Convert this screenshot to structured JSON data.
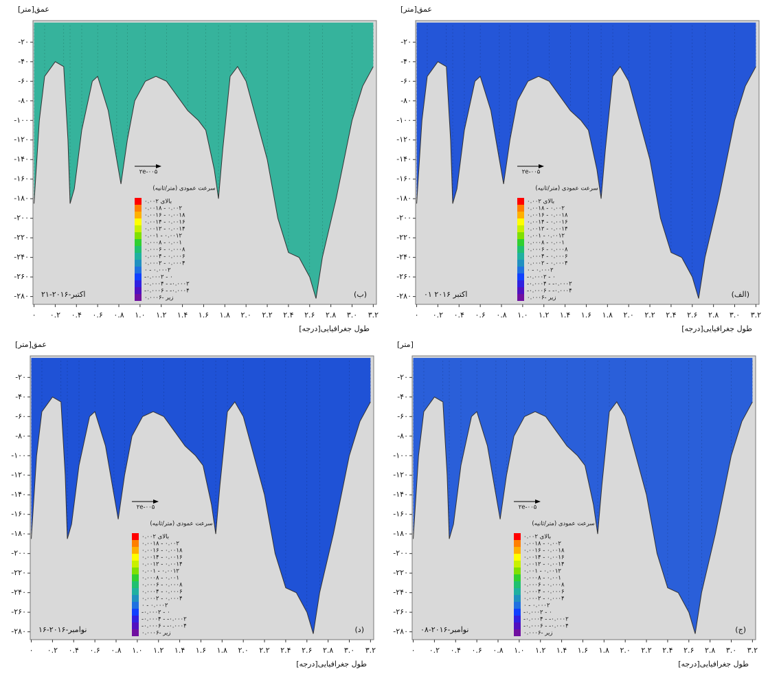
{
  "chart_data": [
    {
      "type": "contour",
      "label": "(ب)",
      "date": "۲۱-اکتبر-۲۰۱۶",
      "y_label": "عمق[متر]",
      "x_label": "طول جغرافیایی[درجه]",
      "color": "#36b39c",
      "vector_label": "۲e-۰۰۵",
      "x": [
        0,
        0.05,
        0.1,
        0.2,
        0.28,
        0.32,
        0.34,
        0.38,
        0.45,
        0.55,
        0.6,
        0.7,
        0.78,
        0.82,
        0.88,
        0.95,
        1.05,
        1.15,
        1.25,
        1.35,
        1.45,
        1.55,
        1.62,
        1.7,
        1.74,
        1.78,
        1.85,
        1.92,
        2.0,
        2.1,
        2.2,
        2.3,
        2.4,
        2.5,
        2.6,
        2.66,
        2.72,
        2.85,
        3.0,
        3.1,
        3.2
      ],
      "values": [
        -185,
        -100,
        -55,
        -40,
        -45,
        -120,
        -185,
        -170,
        -110,
        -60,
        -55,
        -90,
        -140,
        -165,
        -120,
        -80,
        -60,
        -55,
        -60,
        -75,
        -90,
        -100,
        -110,
        -150,
        -180,
        -130,
        -55,
        -45,
        -60,
        -100,
        -140,
        -200,
        -235,
        -240,
        -260,
        -282,
        -240,
        -180,
        -100,
        -65,
        -45
      ],
      "xlim": [
        -0.01,
        3.23
      ],
      "ylim": [
        -288,
        2
      ],
      "xticks": [
        {
          "value": 0,
          "label": "۰"
        },
        {
          "value": 0.2,
          "label": "۰.۲"
        },
        {
          "value": 0.4,
          "label": "۰.۴"
        },
        {
          "value": 0.6,
          "label": "۰.۶"
        },
        {
          "value": 0.8,
          "label": "۰.۸"
        },
        {
          "value": 1.0,
          "label": "۱.۰"
        },
        {
          "value": 1.2,
          "label": "۱.۲"
        },
        {
          "value": 1.4,
          "label": "۱.۴"
        },
        {
          "value": 1.6,
          "label": "۱.۶"
        },
        {
          "value": 1.8,
          "label": "۱.۸"
        },
        {
          "value": 2.0,
          "label": "۲.۰"
        },
        {
          "value": 2.2,
          "label": "۲.۲"
        },
        {
          "value": 2.4,
          "label": "۲.۴"
        },
        {
          "value": 2.6,
          "label": "۲.۶"
        },
        {
          "value": 2.8,
          "label": "۲.۸"
        },
        {
          "value": 3.0,
          "label": "۳.۰"
        },
        {
          "value": 3.2,
          "label": "۳.۲"
        }
      ],
      "yticks": [
        {
          "value": -20,
          "label": "-۲۰"
        },
        {
          "value": -40,
          "label": "-۴۰"
        },
        {
          "value": -60,
          "label": "-۶۰"
        },
        {
          "value": -80,
          "label": "-۸۰"
        },
        {
          "value": -100,
          "label": "-۱۰۰"
        },
        {
          "value": -120,
          "label": "-۱۲۰"
        },
        {
          "value": -140,
          "label": "-۱۴۰"
        },
        {
          "value": -160,
          "label": "-۱۶۰"
        },
        {
          "value": -180,
          "label": "-۱۸۰"
        },
        {
          "value": -200,
          "label": "-۲۰۰"
        },
        {
          "value": -220,
          "label": "-۲۲۰"
        },
        {
          "value": -240,
          "label": "-۲۴۰"
        },
        {
          "value": -260,
          "label": "-۲۶۰"
        },
        {
          "value": -280,
          "label": "-۲۸۰"
        }
      ],
      "legend": {
        "title": "سرعت عمودی (متر/ثانیه)",
        "colors": [
          "#ff0000",
          "#ff7f00",
          "#ffb000",
          "#ffff00",
          "#c8f000",
          "#80e000",
          "#30d030",
          "#20c070",
          "#20b0a0",
          "#2090c0",
          "#2070e0",
          "#1040ff",
          "#3020e0",
          "#5010c0",
          "#7010a0"
        ],
        "labels": [
          "بالای ۰.۰۰۲",
          "۰.۰۰۱۸ - ۰.۰۰۲",
          "۰.۰۰۱۶ - ۰.۰۰۱۸",
          "۰.۰۰۱۴ - ۰.۰۰۱۶",
          "۰.۰۰۱۲ - ۰.۰۰۱۴",
          "۰.۰۰۱ - ۰.۰۰۱۲",
          "۰.۰۰۰۸ - ۰.۰۰۱",
          "۰.۰۰۰۶ - ۰.۰۰۰۸",
          "۰.۰۰۰۴ - ۰.۰۰۰۶",
          "۰.۰۰۰۲ - ۰.۰۰۰۴",
          "۰ - ۰.۰۰۰۲",
          "-۰.۰۰۰۲ - ۰",
          "-۰.۰۰۰۴ - -۰.۰۰۰۲",
          "-۰.۰۰۰۶ - -۰.۰۰۰۴",
          "زیر -۰.۰۰۰۶"
        ]
      }
    },
    {
      "type": "contour",
      "label": "(الف)",
      "date": "۰۱ اکتبر ۲۰۱۶",
      "y_label": "عمق[متر]",
      "x_label": "طول جغرافیایی[درجه]",
      "color": "#2456d8",
      "vector_label": "۲e-۰۰۵",
      "x": [
        0,
        0.05,
        0.1,
        0.2,
        0.28,
        0.32,
        0.34,
        0.38,
        0.45,
        0.55,
        0.6,
        0.7,
        0.78,
        0.82,
        0.88,
        0.95,
        1.05,
        1.15,
        1.25,
        1.35,
        1.45,
        1.55,
        1.62,
        1.7,
        1.74,
        1.78,
        1.85,
        1.92,
        2.0,
        2.1,
        2.2,
        2.3,
        2.4,
        2.5,
        2.6,
        2.66,
        2.72,
        2.85,
        3.0,
        3.1,
        3.2
      ],
      "values": [
        -185,
        -100,
        -55,
        -40,
        -45,
        -120,
        -185,
        -170,
        -110,
        -60,
        -55,
        -90,
        -140,
        -165,
        -120,
        -80,
        -60,
        -55,
        -60,
        -75,
        -90,
        -100,
        -110,
        -150,
        -180,
        -130,
        -55,
        -45,
        -60,
        -100,
        -140,
        -200,
        -235,
        -240,
        -260,
        -282,
        -240,
        -180,
        -100,
        -65,
        -45
      ],
      "xlim": [
        -0.01,
        3.23
      ],
      "ylim": [
        -288,
        2
      ],
      "xticks": [
        {
          "value": 0,
          "label": "۰"
        },
        {
          "value": 0.2,
          "label": "۰.۲"
        },
        {
          "value": 0.4,
          "label": "۰.۴"
        },
        {
          "value": 0.6,
          "label": "۰.۶"
        },
        {
          "value": 0.8,
          "label": "۰.۸"
        },
        {
          "value": 1.0,
          "label": "۱.۰"
        },
        {
          "value": 1.2,
          "label": "۱.۲"
        },
        {
          "value": 1.4,
          "label": "۱.۴"
        },
        {
          "value": 1.6,
          "label": "۱.۶"
        },
        {
          "value": 1.8,
          "label": "۱.۸"
        },
        {
          "value": 2.0,
          "label": "۲.۰"
        },
        {
          "value": 2.2,
          "label": "۲.۲"
        },
        {
          "value": 2.4,
          "label": "۲.۴"
        },
        {
          "value": 2.6,
          "label": "۲.۶"
        },
        {
          "value": 2.8,
          "label": "۲.۸"
        },
        {
          "value": 3.0,
          "label": "۳.۰"
        },
        {
          "value": 3.2,
          "label": "۳.۲"
        }
      ],
      "yticks": [
        {
          "value": -20,
          "label": "-۲۰"
        },
        {
          "value": -40,
          "label": "-۴۰"
        },
        {
          "value": -60,
          "label": "-۶۰"
        },
        {
          "value": -80,
          "label": "-۸۰"
        },
        {
          "value": -100,
          "label": "-۱۰۰"
        },
        {
          "value": -120,
          "label": "-۱۲۰"
        },
        {
          "value": -140,
          "label": "-۱۴۰"
        },
        {
          "value": -160,
          "label": "-۱۶۰"
        },
        {
          "value": -180,
          "label": "-۱۸۰"
        },
        {
          "value": -200,
          "label": "-۲۰۰"
        },
        {
          "value": -220,
          "label": "-۲۲۰"
        },
        {
          "value": -240,
          "label": "-۲۴۰"
        },
        {
          "value": -260,
          "label": "-۲۶۰"
        },
        {
          "value": -280,
          "label": "-۲۸۰"
        }
      ],
      "legend": {
        "title": "سرعت عمودی (متر/ثانیه)",
        "colors": [
          "#ff0000",
          "#ff7f00",
          "#ffb000",
          "#ffff00",
          "#c8f000",
          "#80e000",
          "#30d030",
          "#20c070",
          "#20b0a0",
          "#2090c0",
          "#2070e0",
          "#1040ff",
          "#3020e0",
          "#5010c0",
          "#7010a0"
        ],
        "labels": [
          "بالای ۰.۰۰۲",
          "۰.۰۰۱۸ - ۰.۰۰۲",
          "۰.۰۰۱۶ - ۰.۰۰۱۸",
          "۰.۰۰۱۴ - ۰.۰۰۱۶",
          "۰.۰۰۱۲ - ۰.۰۰۱۴",
          "۰.۰۰۱ - ۰.۰۰۱۲",
          "۰.۰۰۰۸ - ۰.۰۰۱",
          "۰.۰۰۰۶ - ۰.۰۰۰۸",
          "۰.۰۰۰۴ - ۰.۰۰۰۶",
          "۰.۰۰۰۲ - ۰.۰۰۰۴",
          "۰ - ۰.۰۰۰۲",
          "-۰.۰۰۰۲ - ۰",
          "-۰.۰۰۰۴ - -۰.۰۰۰۲",
          "-۰.۰۰۰۶ - -۰.۰۰۰۴",
          "زیر -۰.۰۰۰۶"
        ]
      }
    },
    {
      "type": "contour",
      "label": "(د)",
      "date": "۱۶-نوامبر-۲۰۱۶",
      "y_label": "عمق[متر]",
      "x_label": "طول جغرافیایی[درجه]",
      "color": "#1f52d6",
      "vector_label": "۲e-۰۰۵",
      "x": [
        0,
        0.05,
        0.1,
        0.2,
        0.28,
        0.32,
        0.34,
        0.38,
        0.45,
        0.55,
        0.6,
        0.7,
        0.78,
        0.82,
        0.88,
        0.95,
        1.05,
        1.15,
        1.25,
        1.35,
        1.45,
        1.55,
        1.62,
        1.7,
        1.74,
        1.78,
        1.85,
        1.92,
        2.0,
        2.1,
        2.2,
        2.3,
        2.4,
        2.5,
        2.6,
        2.66,
        2.72,
        2.85,
        3.0,
        3.1,
        3.2
      ],
      "values": [
        -185,
        -100,
        -55,
        -40,
        -45,
        -120,
        -185,
        -170,
        -110,
        -60,
        -55,
        -90,
        -140,
        -165,
        -120,
        -80,
        -60,
        -55,
        -60,
        -75,
        -90,
        -100,
        -110,
        -150,
        -180,
        -130,
        -55,
        -45,
        -60,
        -100,
        -140,
        -200,
        -235,
        -240,
        -260,
        -282,
        -240,
        -180,
        -100,
        -65,
        -45
      ],
      "xlim": [
        -0.01,
        3.23
      ],
      "ylim": [
        -288,
        2
      ],
      "xticks": [
        {
          "value": 0,
          "label": "۰"
        },
        {
          "value": 0.2,
          "label": "۰.۲"
        },
        {
          "value": 0.4,
          "label": "۰.۴"
        },
        {
          "value": 0.6,
          "label": "۰.۶"
        },
        {
          "value": 0.8,
          "label": "۰.۸"
        },
        {
          "value": 1.0,
          "label": "۱.۰"
        },
        {
          "value": 1.2,
          "label": "۱.۲"
        },
        {
          "value": 1.4,
          "label": "۱.۴"
        },
        {
          "value": 1.6,
          "label": "۱.۶"
        },
        {
          "value": 1.8,
          "label": "۱.۸"
        },
        {
          "value": 2.0,
          "label": "۲.۰"
        },
        {
          "value": 2.2,
          "label": "۲.۲"
        },
        {
          "value": 2.4,
          "label": "۲.۴"
        },
        {
          "value": 2.6,
          "label": "۲.۶"
        },
        {
          "value": 2.8,
          "label": "۲.۸"
        },
        {
          "value": 3.0,
          "label": "۳.۰"
        },
        {
          "value": 3.2,
          "label": "۳.۲"
        }
      ],
      "yticks": [
        {
          "value": -20,
          "label": "-۲۰"
        },
        {
          "value": -40,
          "label": "-۴۰"
        },
        {
          "value": -60,
          "label": "-۶۰"
        },
        {
          "value": -80,
          "label": "-۸۰"
        },
        {
          "value": -100,
          "label": "-۱۰۰"
        },
        {
          "value": -120,
          "label": "-۱۲۰"
        },
        {
          "value": -140,
          "label": "-۱۴۰"
        },
        {
          "value": -160,
          "label": "-۱۶۰"
        },
        {
          "value": -180,
          "label": "-۱۸۰"
        },
        {
          "value": -200,
          "label": "-۲۰۰"
        },
        {
          "value": -220,
          "label": "-۲۲۰"
        },
        {
          "value": -240,
          "label": "-۲۴۰"
        },
        {
          "value": -260,
          "label": "-۲۶۰"
        },
        {
          "value": -280,
          "label": "-۲۸۰"
        }
      ],
      "legend": {
        "title": "سرعت عمودی (متر/ثانیه)",
        "colors": [
          "#ff0000",
          "#ff7f00",
          "#ffb000",
          "#ffff00",
          "#c8f000",
          "#80e000",
          "#30d030",
          "#20c070",
          "#20b0a0",
          "#2090c0",
          "#2070e0",
          "#1040ff",
          "#3020e0",
          "#5010c0",
          "#7010a0"
        ],
        "labels": [
          "بالای ۰.۰۰۲",
          "۰.۰۰۱۸ - ۰.۰۰۲",
          "۰.۰۰۱۶ - ۰.۰۰۱۸",
          "۰.۰۰۱۴ - ۰.۰۰۱۶",
          "۰.۰۰۱۲ - ۰.۰۰۱۴",
          "۰.۰۰۱ - ۰.۰۰۱۲",
          "۰.۰۰۰۸ - ۰.۰۰۱",
          "۰.۰۰۰۶ - ۰.۰۰۰۸",
          "۰.۰۰۰۴ - ۰.۰۰۰۶",
          "۰.۰۰۰۲ - ۰.۰۰۰۴",
          "۰ - ۰.۰۰۰۲",
          "-۰.۰۰۰۲ - ۰",
          "-۰.۰۰۰۴ - -۰.۰۰۰۲",
          "-۰.۰۰۰۶ - -۰.۰۰۰۴",
          "زیر -۰.۰۰۰۶"
        ]
      }
    },
    {
      "type": "contour",
      "label": "(ج)",
      "date": "۰۸-نوامبر-۲۰۱۶",
      "y_label": "[متر]",
      "x_label": "طول جغرافیایی[درجه]",
      "color": "#2a5fd9",
      "vector_label": "۲e-۰۰۵",
      "x": [
        0,
        0.05,
        0.1,
        0.2,
        0.28,
        0.32,
        0.34,
        0.38,
        0.45,
        0.55,
        0.6,
        0.7,
        0.78,
        0.82,
        0.88,
        0.95,
        1.05,
        1.15,
        1.25,
        1.35,
        1.45,
        1.55,
        1.62,
        1.7,
        1.74,
        1.78,
        1.85,
        1.92,
        2.0,
        2.1,
        2.2,
        2.3,
        2.4,
        2.5,
        2.6,
        2.66,
        2.72,
        2.85,
        3.0,
        3.1,
        3.2
      ],
      "values": [
        -185,
        -100,
        -55,
        -40,
        -45,
        -120,
        -185,
        -170,
        -110,
        -60,
        -55,
        -90,
        -140,
        -165,
        -120,
        -80,
        -60,
        -55,
        -60,
        -75,
        -90,
        -100,
        -110,
        -150,
        -180,
        -130,
        -55,
        -45,
        -60,
        -100,
        -140,
        -200,
        -235,
        -240,
        -260,
        -282,
        -240,
        -180,
        -100,
        -65,
        -45
      ],
      "xlim": [
        -0.01,
        3.23
      ],
      "ylim": [
        -288,
        2
      ],
      "xticks": [
        {
          "value": 0,
          "label": "۰"
        },
        {
          "value": 0.2,
          "label": "۰.۲"
        },
        {
          "value": 0.4,
          "label": "۰.۴"
        },
        {
          "value": 0.6,
          "label": "۰.۶"
        },
        {
          "value": 0.8,
          "label": "۰.۸"
        },
        {
          "value": 1.0,
          "label": "۱.۰"
        },
        {
          "value": 1.2,
          "label": "۱.۲"
        },
        {
          "value": 1.4,
          "label": "۱.۴"
        },
        {
          "value": 1.6,
          "label": "۱.۶"
        },
        {
          "value": 1.8,
          "label": "۱.۸"
        },
        {
          "value": 2.0,
          "label": "۲.۰"
        },
        {
          "value": 2.2,
          "label": "۲.۲"
        },
        {
          "value": 2.4,
          "label": "۲.۴"
        },
        {
          "value": 2.6,
          "label": "۲.۶"
        },
        {
          "value": 2.8,
          "label": "۲.۸"
        },
        {
          "value": 3.0,
          "label": "۳.۰"
        },
        {
          "value": 3.2,
          "label": "۳.۲"
        }
      ],
      "yticks": [
        {
          "value": -20,
          "label": "-۲۰"
        },
        {
          "value": -40,
          "label": "-۴۰"
        },
        {
          "value": -60,
          "label": "-۶۰"
        },
        {
          "value": -80,
          "label": "-۸۰"
        },
        {
          "value": -100,
          "label": "-۱۰۰"
        },
        {
          "value": -120,
          "label": "-۱۲۰"
        },
        {
          "value": -140,
          "label": "-۱۴۰"
        },
        {
          "value": -160,
          "label": "-۱۶۰"
        },
        {
          "value": -180,
          "label": "-۱۸۰"
        },
        {
          "value": -200,
          "label": "-۲۰۰"
        },
        {
          "value": -220,
          "label": "-۲۲۰"
        },
        {
          "value": -240,
          "label": "-۲۴۰"
        },
        {
          "value": -260,
          "label": "-۲۶۰"
        },
        {
          "value": -280,
          "label": "-۲۸۰"
        }
      ],
      "legend": {
        "title": "سرعت عمودی (متر/ثانیه)",
        "colors": [
          "#ff0000",
          "#ff7f00",
          "#ffb000",
          "#ffff00",
          "#c8f000",
          "#80e000",
          "#30d030",
          "#20c070",
          "#20b0a0",
          "#2090c0",
          "#2070e0",
          "#1040ff",
          "#3020e0",
          "#5010c0",
          "#7010a0"
        ],
        "labels": [
          "بالای ۰.۰۰۲",
          "۰.۰۰۱۸ - ۰.۰۰۲",
          "۰.۰۰۱۶ - ۰.۰۰۱۸",
          "۰.۰۰۱۴ - ۰.۰۰۱۶",
          "۰.۰۰۱۲ - ۰.۰۰۱۴",
          "۰.۰۰۱ - ۰.۰۰۱۲",
          "۰.۰۰۰۸ - ۰.۰۰۱",
          "۰.۰۰۰۶ - ۰.۰۰۰۸",
          "۰.۰۰۰۴ - ۰.۰۰۰۶",
          "۰.۰۰۰۲ - ۰.۰۰۰۴",
          "۰ - ۰.۰۰۰۲",
          "-۰.۰۰۰۲ - ۰",
          "-۰.۰۰۰۴ - -۰.۰۰۰۲",
          "-۰.۰۰۰۶ - -۰.۰۰۰۴",
          "زیر -۰.۰۰۰۶"
        ]
      }
    }
  ]
}
